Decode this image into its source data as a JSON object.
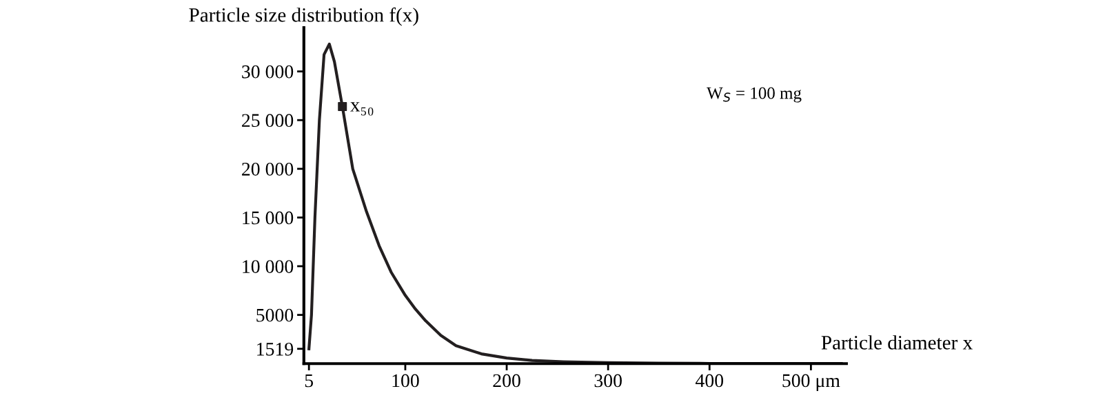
{
  "chart_data": {
    "type": "line",
    "xlabel": "Particle diameter x",
    "ylabel": "Particle size distribution f(x)",
    "series": [
      {
        "color": "#231f20",
        "x": [
          5,
          7.5,
          10.9,
          15.3,
          19.9,
          25.1,
          30.1,
          38,
          48.2,
          61.8,
          74.2,
          86,
          100,
          110,
          120,
          135,
          150,
          175,
          200,
          225,
          256,
          300,
          350,
          400,
          450,
          500,
          530
        ],
        "values": [
          1519,
          5000,
          15000,
          25000,
          31730,
          32810,
          31010,
          26390,
          20000,
          15590,
          12100,
          9400,
          7000,
          5600,
          4400,
          2900,
          1840,
          1000,
          570,
          330,
          190,
          90,
          40,
          15,
          8,
          5,
          3
        ]
      },
      {
        "type": "scatter",
        "color": "#231f20",
        "marker": "square",
        "x": [
          38
        ],
        "values": [
          26390
        ]
      }
    ],
    "annotations": [
      {
        "text": "x₅₀",
        "x": 38,
        "y": 26390
      },
      "W$_{S}$ = 100 mg"
    ],
    "xlim": [
      0,
      535
    ],
    "ylim": [
      0,
      34500
    ],
    "xticks": [
      5,
      100,
      200,
      300,
      400,
      {
        "value": 500,
        "label": "500 μm"
      }
    ],
    "yticks": [
      1519,
      5000,
      {
        "value": 10000,
        "label": "10 000"
      },
      {
        "value": 15000,
        "label": "15 000"
      },
      {
        "value": 20000,
        "label": "20 000"
      },
      {
        "value": 25000,
        "label": "25 000"
      },
      {
        "value": 30000,
        "label": "30 000"
      }
    ],
    "grid": false,
    "legend": false
  }
}
